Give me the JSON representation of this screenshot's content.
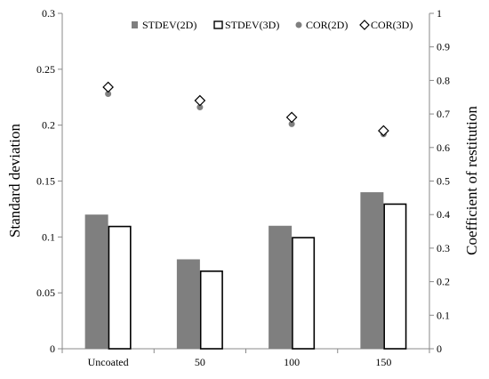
{
  "chart_data": {
    "type": "bar",
    "categories": [
      "Uncoated",
      "50",
      "100",
      "150"
    ],
    "left_axis": {
      "label": "Standard deviation",
      "range": [
        0,
        0.3
      ],
      "ticks": [
        "0",
        "0.05",
        "0.1",
        "0.15",
        "0.2",
        "0.25",
        "0.3"
      ]
    },
    "right_axis": {
      "label": "Coefficient of restitution",
      "range": [
        0,
        1
      ],
      "ticks": [
        "0",
        "0.1",
        "0.2",
        "0.3",
        "0.4",
        "0.5",
        "0.6",
        "0.7",
        "0.8",
        "0.9",
        "1"
      ]
    },
    "series": [
      {
        "name": "STDEV(2D)",
        "kind": "bar",
        "axis": "left",
        "values": [
          0.12,
          0.08,
          0.11,
          0.14
        ],
        "color": "#7f7f7f"
      },
      {
        "name": "STDEV(3D)",
        "kind": "bar",
        "axis": "left",
        "values": [
          0.11,
          0.07,
          0.1,
          0.13
        ],
        "color": "#ffffff",
        "stroke": "#000000"
      },
      {
        "name": "COR(2D)",
        "kind": "marker-circle",
        "axis": "right",
        "values": [
          0.76,
          0.72,
          0.67,
          0.64
        ],
        "color": "#7f7f7f"
      },
      {
        "name": "COR(3D)",
        "kind": "marker-diamond",
        "axis": "right",
        "values": [
          0.78,
          0.74,
          0.69,
          0.65
        ],
        "color": "#ffffff",
        "stroke": "#000000"
      }
    ],
    "legend_position": "top-right",
    "grid": false
  }
}
